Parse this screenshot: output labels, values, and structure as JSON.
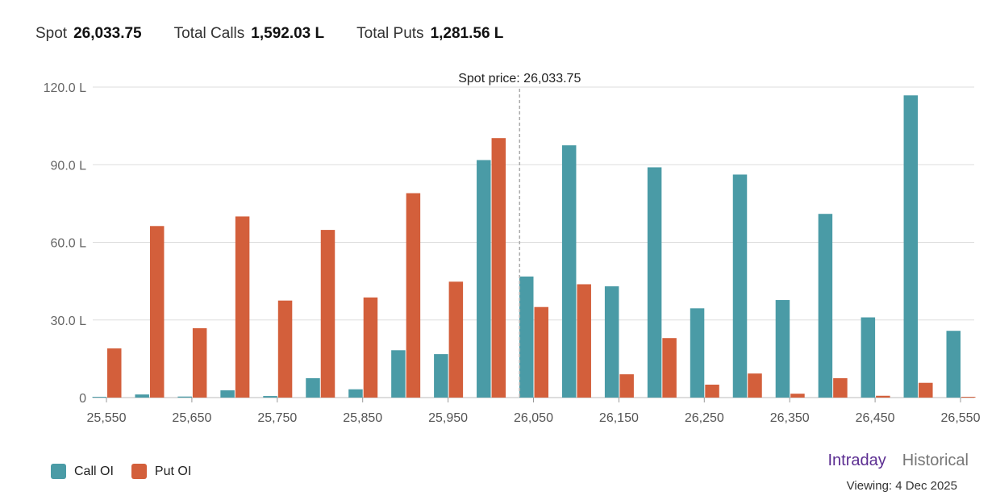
{
  "summary": {
    "spot_label": "Spot",
    "spot_value": "26,033.75",
    "calls_label": "Total Calls",
    "calls_value": "1,592.03 L",
    "puts_label": "Total Puts",
    "puts_value": "1,281.56 L"
  },
  "colors": {
    "call": "#4a9ba6",
    "put": "#d35f3b",
    "grid": "#dddddd",
    "active_tab": "#5b2d91",
    "inactive_tab": "#777777"
  },
  "legend": {
    "call_label": "Call OI",
    "put_label": "Put OI"
  },
  "toggle": {
    "intraday": "Intraday",
    "historical": "Historical",
    "active": "intraday"
  },
  "viewing": "Viewing: 4 Dec 2025",
  "chart_data": {
    "type": "bar",
    "categories": [
      25550,
      25600,
      25650,
      25700,
      25750,
      25800,
      25850,
      25900,
      25950,
      26000,
      26050,
      26100,
      26150,
      26200,
      26250,
      26300,
      26350,
      26400,
      26450,
      26500,
      26550
    ],
    "x_tick_labels": [
      "25,550",
      "25,650",
      "25,750",
      "25,850",
      "25,950",
      "26,050",
      "26,150",
      "26,250",
      "26,350",
      "26,450",
      "26,550"
    ],
    "series": [
      {
        "name": "Call OI",
        "values": [
          0.3,
          1.2,
          0.4,
          2.8,
          0.6,
          7.5,
          3.2,
          18.3,
          16.8,
          91.8,
          46.8,
          97.5,
          43.0,
          89.0,
          34.5,
          86.2,
          37.7,
          71.0,
          31.0,
          116.8,
          25.8
        ]
      },
      {
        "name": "Put OI",
        "values": [
          19.0,
          66.3,
          26.8,
          70.0,
          37.5,
          64.8,
          38.7,
          79.0,
          44.8,
          100.3,
          35.0,
          43.8,
          9.0,
          23.0,
          5.0,
          9.3,
          1.5,
          7.5,
          0.7,
          5.7,
          0.3
        ]
      }
    ],
    "ylim": [
      0,
      120
    ],
    "y_ticks": [
      0,
      30,
      60,
      90,
      120
    ],
    "y_tick_labels": [
      "0",
      "30.0 L",
      "60.0 L",
      "90.0 L",
      "120.0 L"
    ],
    "spot_line": {
      "value": 26033.75,
      "label": "Spot price: 26,033.75"
    },
    "grid": true,
    "legend_position": "bottom-left"
  }
}
